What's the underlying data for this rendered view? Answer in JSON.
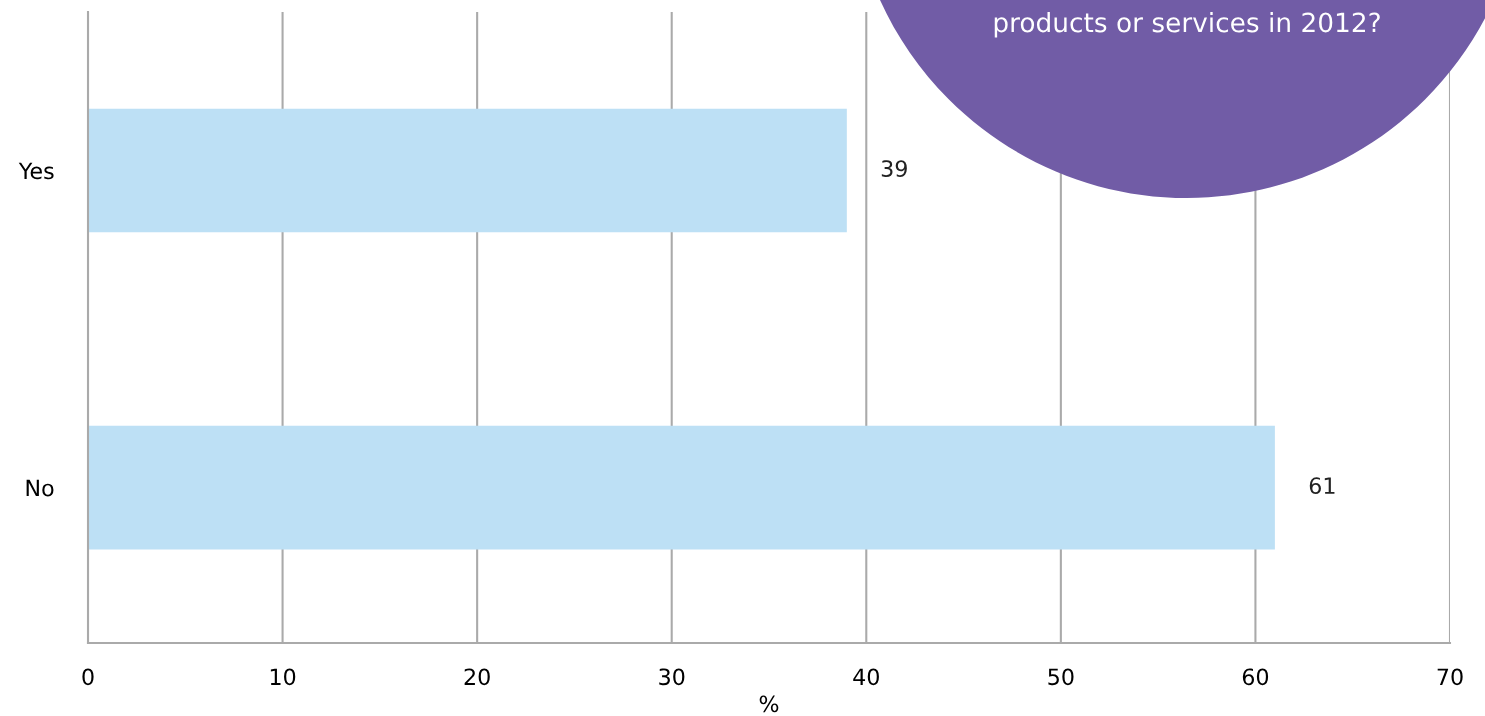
{
  "chart_data": {
    "type": "bar",
    "orientation": "horizontal",
    "title": "products or services in 2012?",
    "categories": [
      "Yes",
      "No"
    ],
    "values": [
      39,
      61
    ],
    "color": "#bde0f5",
    "xlim": [
      0,
      70
    ],
    "xticks": [
      0,
      10,
      20,
      30,
      40,
      50,
      60,
      70
    ],
    "xlabel": "%",
    "grid": "x",
    "data_labels": true
  }
}
